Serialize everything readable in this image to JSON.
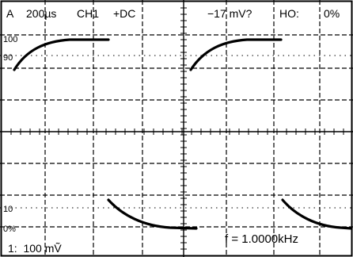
{
  "header": {
    "channel_a": "A",
    "timebase": "200µs",
    "channel": "CH1",
    "coupling": "+DC",
    "trigger_level": "−17 mV?",
    "holdoff_label": "HO:",
    "holdoff_value": "0%"
  },
  "left_markers": {
    "m100": "100",
    "m90": "90",
    "m10": "10",
    "m0": "0%"
  },
  "footer": {
    "channel_scale": "1:  100 mṼ",
    "frequency": "f = 1.0000kHz"
  },
  "display": {
    "background": "#ffffff",
    "trace_color": "#000000",
    "grid_color": "#000000"
  }
}
